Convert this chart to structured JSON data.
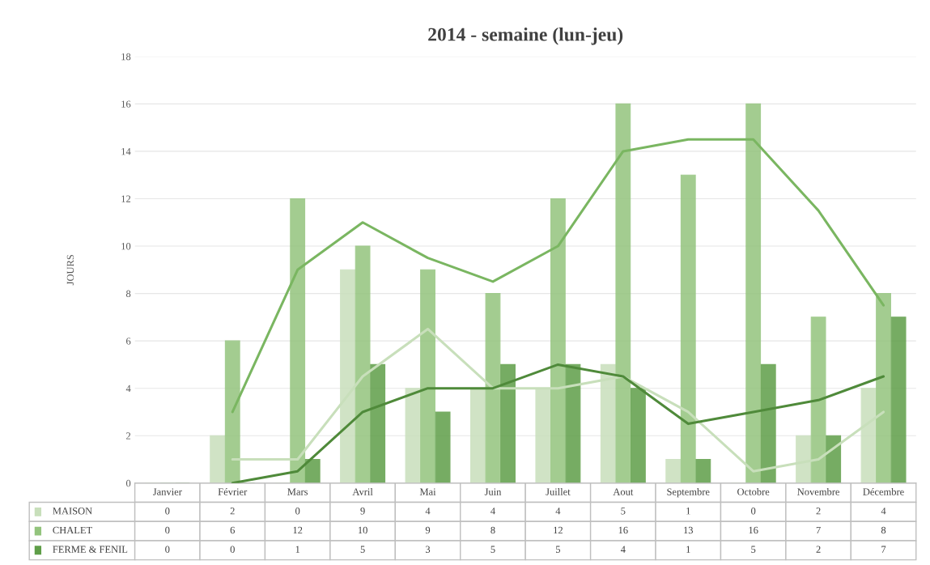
{
  "chart_data": {
    "type": "bar",
    "title": "2014 - semaine (lun-jeu)",
    "ylabel": "JOURS",
    "categories": [
      "Janvier",
      "Février",
      "Mars",
      "Avril",
      "Mai",
      "Juin",
      "Juillet",
      "Aout",
      "Septembre",
      "Octobre",
      "Novembre",
      "Décembre"
    ],
    "series": [
      {
        "name": "MAISON",
        "color": "#c8dfbb",
        "values": [
          0,
          2,
          0,
          9,
          4,
          4,
          4,
          5,
          1,
          0,
          2,
          4
        ],
        "value_labels": [
          "0",
          "2",
          "0",
          "9",
          "4",
          "4",
          "4",
          "5",
          "1",
          "0",
          "2",
          "4"
        ]
      },
      {
        "name": "CHALET",
        "color": "#93c47d",
        "values": [
          0,
          6,
          12,
          10,
          9,
          8,
          12,
          16,
          13,
          16,
          7,
          8
        ],
        "value_labels": [
          "0",
          "6",
          "12",
          "10",
          "9",
          "8",
          "12",
          "16",
          "13",
          "16",
          "7",
          "8"
        ]
      },
      {
        "name": "FERME & FENIL",
        "color": "#5f9e48",
        "values": [
          0,
          0,
          1,
          5,
          3,
          5,
          5,
          4,
          1,
          5,
          2,
          7
        ],
        "value_labels": [
          "0",
          "0",
          "1",
          "5",
          "3",
          "5",
          "5",
          "4",
          "1",
          "5",
          "2",
          "7"
        ]
      },
      {
        "type": "line",
        "color": "#c8dfbb",
        "values": [
          null,
          1,
          1,
          4.5,
          6.5,
          4,
          4,
          4.5,
          3,
          0.5,
          1,
          3
        ]
      },
      {
        "type": "line",
        "color": "#7ab661",
        "values": [
          null,
          3,
          9,
          11,
          9.5,
          8.5,
          10,
          14,
          14.5,
          14.5,
          11.5,
          7.5
        ]
      },
      {
        "type": "line",
        "color": "#4f8a3a",
        "values": [
          null,
          0,
          0.5,
          3,
          4,
          4,
          5,
          4.5,
          2.5,
          3,
          3.5,
          4.5
        ]
      }
    ],
    "ylim": [
      0,
      18
    ],
    "yticks": [
      0,
      2,
      4,
      6,
      8,
      10,
      12,
      14,
      16,
      18
    ],
    "grid": "y",
    "legend": "bottom"
  }
}
